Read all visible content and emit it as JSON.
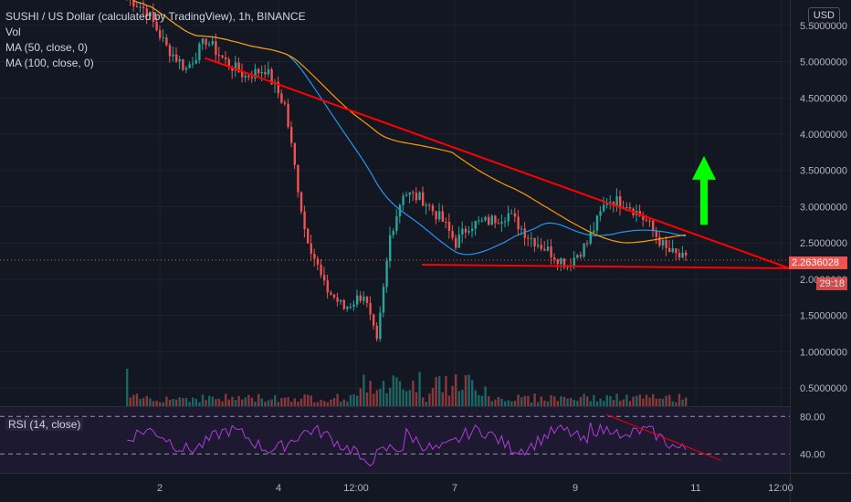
{
  "legend": {
    "symbol": "SUSHI / US Dollar (calculated by TradingView), 1h, BINANCE",
    "vol": "Vol",
    "ma50": "MA (50, close, 0)",
    "ma100": "MA (100, close, 0)"
  },
  "rsi_label": "RSI (14, close)",
  "currency": "USD",
  "last_price": "2.2636028",
  "countdown": "29:18",
  "colors": {
    "background": "#131722",
    "up": "#26a69a",
    "down": "#ef5350",
    "ma50": "#2196f3",
    "ma100": "#ff9800",
    "rsi": "#b03cd9",
    "trend": "#ff0000",
    "arrow": "#00ff00"
  },
  "chart_data": {
    "type": "candlestick",
    "price_axis": {
      "ticks": [
        "5.5000000",
        "5.0000000",
        "4.5000000",
        "4.0000000",
        "3.5000000",
        "3.0000000",
        "2.5000000",
        "2.0000000",
        "1.5000000",
        "1.0000000",
        "0.5000000"
      ],
      "ylim": [
        0.25,
        5.85
      ]
    },
    "time_axis": {
      "ticks": [
        "2",
        "4",
        "12:00",
        "7",
        "9",
        "11",
        "12:00"
      ]
    },
    "rsi_axis": {
      "ticks": [
        "80.00",
        "40.00"
      ]
    },
    "close_path": [
      {
        "t": 0,
        "p": 5.9
      },
      {
        "t": 3,
        "p": 5.7
      },
      {
        "t": 6,
        "p": 5.2
      },
      {
        "t": 9,
        "p": 4.9
      },
      {
        "t": 12,
        "p": 5.3
      },
      {
        "t": 15,
        "p": 5.0
      },
      {
        "t": 18,
        "p": 4.8
      },
      {
        "t": 21,
        "p": 4.9
      },
      {
        "t": 24,
        "p": 4.4
      },
      {
        "t": 27,
        "p": 2.7
      },
      {
        "t": 30,
        "p": 1.9
      },
      {
        "t": 33,
        "p": 1.6
      },
      {
        "t": 36,
        "p": 1.8
      },
      {
        "t": 38,
        "p": 1.1
      },
      {
        "t": 40,
        "p": 2.6
      },
      {
        "t": 42,
        "p": 3.2
      },
      {
        "t": 45,
        "p": 3.1
      },
      {
        "t": 48,
        "p": 2.8
      },
      {
        "t": 50,
        "p": 2.5
      },
      {
        "t": 52,
        "p": 2.75
      },
      {
        "t": 55,
        "p": 2.8
      },
      {
        "t": 58,
        "p": 2.9
      },
      {
        "t": 61,
        "p": 2.6
      },
      {
        "t": 64,
        "p": 2.4
      },
      {
        "t": 67,
        "p": 2.2
      },
      {
        "t": 70,
        "p": 2.5
      },
      {
        "t": 73,
        "p": 3.1
      },
      {
        "t": 76,
        "p": 3.05
      },
      {
        "t": 79,
        "p": 2.8
      },
      {
        "t": 82,
        "p": 2.4
      },
      {
        "t": 85,
        "p": 2.26
      }
    ],
    "annotations": {
      "descending_trendline": [
        {
          "t": 12,
          "p": 5.05
        },
        {
          "t": 135,
          "p": 2.15
        }
      ],
      "support_line": [
        {
          "t": 40,
          "p": 2.2
        },
        {
          "t": 135,
          "p": 2.15
        }
      ],
      "arrow_up": {
        "t": 91,
        "from": 2.75,
        "to": 3.7
      }
    }
  }
}
